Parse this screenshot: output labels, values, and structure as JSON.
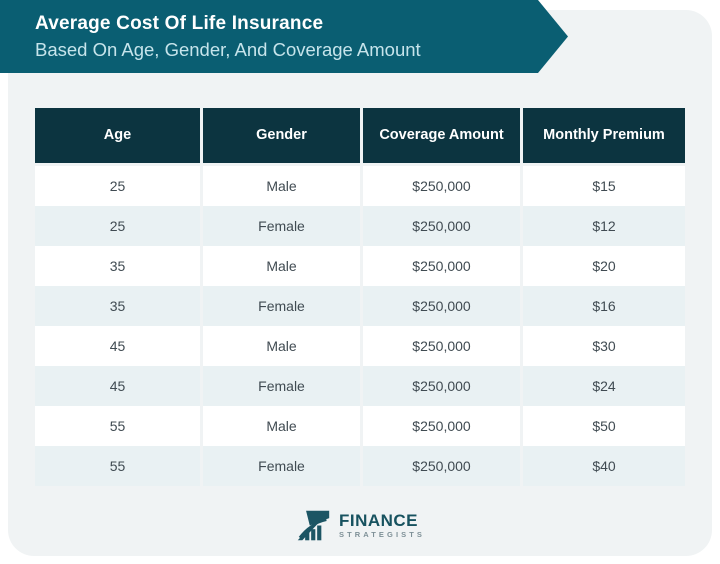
{
  "banner": {
    "title": "Average Cost Of Life Insurance",
    "subtitle": "Based On Age, Gender, And Coverage Amount"
  },
  "chart_data": {
    "type": "table",
    "title": "Average Cost Of Life Insurance Based On Age, Gender, And Coverage Amount",
    "columns": [
      "Age",
      "Gender",
      "Coverage Amount",
      "Monthly Premium"
    ],
    "rows": [
      [
        "25",
        "Male",
        "$250,000",
        "$15"
      ],
      [
        "25",
        "Female",
        "$250,000",
        "$12"
      ],
      [
        "35",
        "Male",
        "$250,000",
        "$20"
      ],
      [
        "35",
        "Female",
        "$250,000",
        "$16"
      ],
      [
        "45",
        "Male",
        "$250,000",
        "$30"
      ],
      [
        "45",
        "Female",
        "$250,000",
        "$24"
      ],
      [
        "55",
        "Male",
        "$250,000",
        "$50"
      ],
      [
        "55",
        "Female",
        "$250,000",
        "$40"
      ]
    ]
  },
  "footer": {
    "logo_primary": "FINANCE",
    "logo_secondary": "STRATEGISTS",
    "logo_icon": "growth-chart-flag-icon"
  },
  "colors": {
    "banner": "#0a5e72",
    "header_cell": "#0c3440",
    "row": "#ffffff",
    "row_alt": "#e9f1f3",
    "card_bg": "#f0f3f4",
    "body_text": "#404b52",
    "subtitle_text": "#c6e4eb",
    "logo_teal": "#17525f"
  }
}
